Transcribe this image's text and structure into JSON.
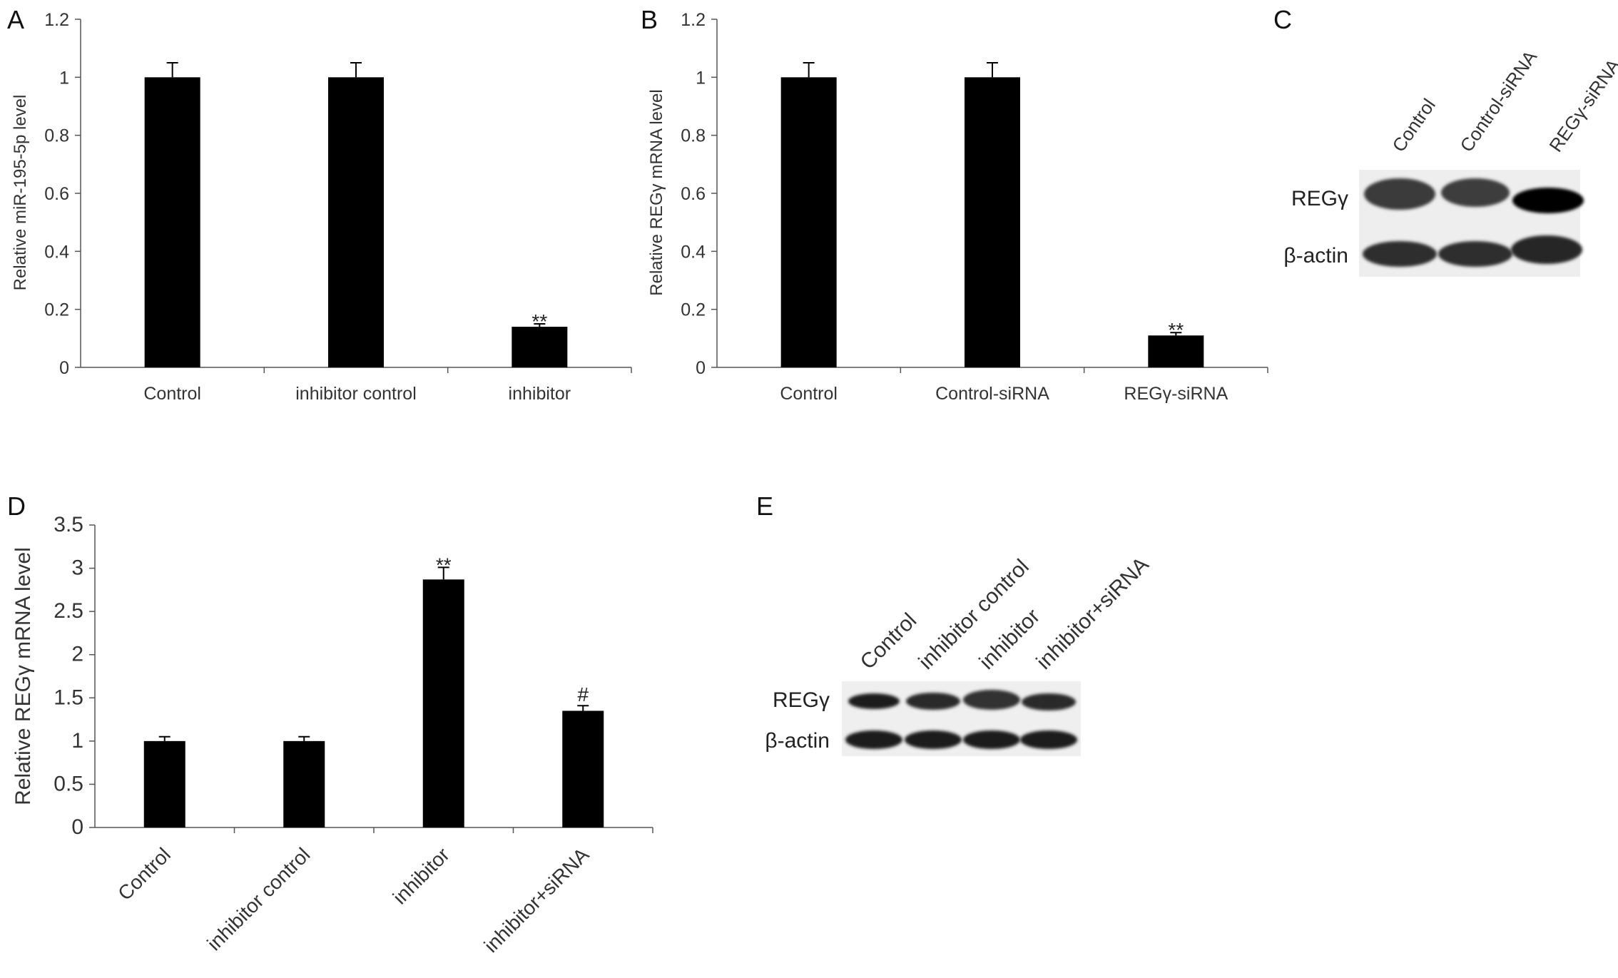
{
  "panels": {
    "A": {
      "letter": "A"
    },
    "B": {
      "letter": "B"
    },
    "C": {
      "letter": "C"
    },
    "D": {
      "letter": "D"
    },
    "E": {
      "letter": "E"
    }
  },
  "chart_data": [
    {
      "id": "A",
      "type": "bar",
      "categories": [
        "Control",
        "inhibitor control",
        "inhibitor"
      ],
      "values": [
        1.0,
        1.0,
        0.14
      ],
      "errors": [
        0.05,
        0.05,
        0.01
      ],
      "annotations": [
        "",
        "",
        "**"
      ],
      "ylabel": "Relative miR-195-5p level",
      "xlabel": "",
      "ylim": [
        0,
        1.2
      ],
      "yticks": [
        "0",
        "0.2",
        "0.4",
        "0.6",
        "0.8",
        "1",
        "1.2"
      ],
      "grid": false
    },
    {
      "id": "B",
      "type": "bar",
      "categories": [
        "Control",
        "Control-siRNA",
        "REGγ-siRNA"
      ],
      "values": [
        1.0,
        1.0,
        0.11
      ],
      "errors": [
        0.05,
        0.05,
        0.01
      ],
      "annotations": [
        "",
        "",
        "**"
      ],
      "ylabel": "Relative REGγ mRNA level",
      "xlabel": "",
      "ylim": [
        0,
        1.2
      ],
      "yticks": [
        "0",
        "0.2",
        "0.4",
        "0.6",
        "0.8",
        "1",
        "1.2"
      ],
      "grid": false
    },
    {
      "id": "D",
      "type": "bar",
      "categories": [
        "Control",
        "inhibitor control",
        "inhibitor",
        "inhibitor+siRNA"
      ],
      "values": [
        1.0,
        1.0,
        2.87,
        1.35
      ],
      "errors": [
        0.05,
        0.05,
        0.14,
        0.06
      ],
      "annotations": [
        "",
        "",
        "**",
        "#"
      ],
      "ylabel": "Relative REGγ mRNA level",
      "xlabel": "",
      "ylim": [
        0,
        3.5
      ],
      "yticks": [
        "0",
        "0.5",
        "1",
        "1.5",
        "2",
        "2.5",
        "3",
        "3.5"
      ],
      "grid": false
    }
  ],
  "blots": {
    "C": {
      "lanes": [
        "Control",
        "Control-siRNA",
        "REGγ-siRNA"
      ],
      "rows": [
        "REGγ",
        "β-actin"
      ]
    },
    "E": {
      "lanes": [
        "Control",
        "inhibitor control",
        "inhibitor",
        "inhibitor+siRNA"
      ],
      "rows": [
        "REGγ",
        "β-actin"
      ]
    }
  }
}
